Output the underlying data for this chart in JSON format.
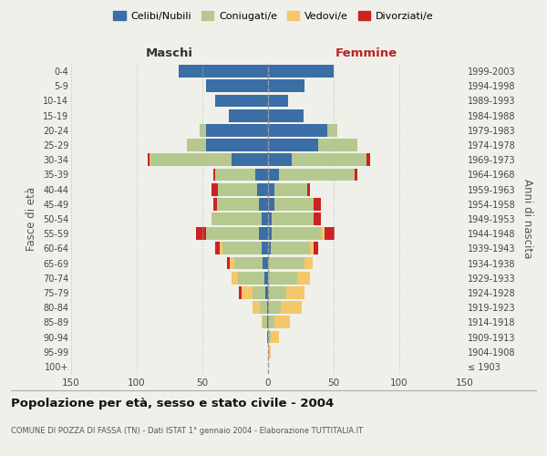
{
  "age_groups": [
    "100+",
    "95-99",
    "90-94",
    "85-89",
    "80-84",
    "75-79",
    "70-74",
    "65-69",
    "60-64",
    "55-59",
    "50-54",
    "45-49",
    "40-44",
    "35-39",
    "30-34",
    "25-29",
    "20-24",
    "15-19",
    "10-14",
    "5-9",
    "0-4"
  ],
  "birth_years": [
    "≤ 1903",
    "1904-1908",
    "1909-1913",
    "1914-1918",
    "1919-1923",
    "1924-1928",
    "1929-1933",
    "1934-1938",
    "1939-1943",
    "1944-1948",
    "1949-1953",
    "1954-1958",
    "1959-1963",
    "1964-1968",
    "1969-1973",
    "1974-1978",
    "1979-1983",
    "1984-1988",
    "1989-1993",
    "1994-1998",
    "1999-2003"
  ],
  "colors": {
    "celibi": "#3a6ea5",
    "coniugati": "#b5c98e",
    "vedovi": "#f5c76a",
    "divorziati": "#cc2222"
  },
  "males_celibi": [
    0,
    0,
    1,
    1,
    1,
    2,
    3,
    4,
    5,
    7,
    5,
    7,
    8,
    10,
    28,
    47,
    47,
    30,
    40,
    47,
    68
  ],
  "males_coniugati": [
    0,
    0,
    0,
    3,
    5,
    10,
    20,
    22,
    30,
    40,
    38,
    32,
    30,
    30,
    62,
    15,
    5,
    0,
    0,
    0,
    0
  ],
  "males_vedovi": [
    0,
    0,
    0,
    1,
    6,
    8,
    5,
    3,
    2,
    0,
    0,
    0,
    0,
    0,
    0,
    0,
    0,
    0,
    0,
    0,
    0
  ],
  "males_divorziati": [
    0,
    0,
    0,
    0,
    0,
    2,
    0,
    2,
    3,
    8,
    0,
    3,
    5,
    2,
    2,
    0,
    0,
    0,
    0,
    0,
    0
  ],
  "females_nubili": [
    0,
    0,
    0,
    0,
    0,
    0,
    0,
    0,
    2,
    3,
    3,
    5,
    5,
    8,
    18,
    38,
    45,
    27,
    15,
    28,
    50
  ],
  "females_coniugate": [
    0,
    0,
    2,
    5,
    10,
    14,
    22,
    28,
    30,
    38,
    32,
    30,
    25,
    58,
    57,
    30,
    8,
    0,
    0,
    0,
    0
  ],
  "females_vedove": [
    0,
    2,
    6,
    12,
    16,
    14,
    10,
    6,
    3,
    2,
    0,
    0,
    0,
    0,
    0,
    0,
    0,
    0,
    0,
    0,
    0
  ],
  "females_divorziate": [
    0,
    0,
    0,
    0,
    0,
    0,
    0,
    0,
    3,
    8,
    5,
    5,
    2,
    2,
    3,
    0,
    0,
    0,
    0,
    0,
    0
  ],
  "xlim": 150,
  "title": "Popolazione per età, sesso e stato civile - 2004",
  "subtitle": "COMUNE DI POZZA DI FASSA (TN) - Dati ISTAT 1° gennaio 2004 - Elaborazione TUTTITALIA.IT",
  "ylabel_left": "Fasce di età",
  "ylabel_right": "Anni di nascita",
  "legend_labels": [
    "Celibi/Nubili",
    "Coniugati/e",
    "Vedovi/e",
    "Divorziati/e"
  ],
  "background_color": "#f0f0eb"
}
